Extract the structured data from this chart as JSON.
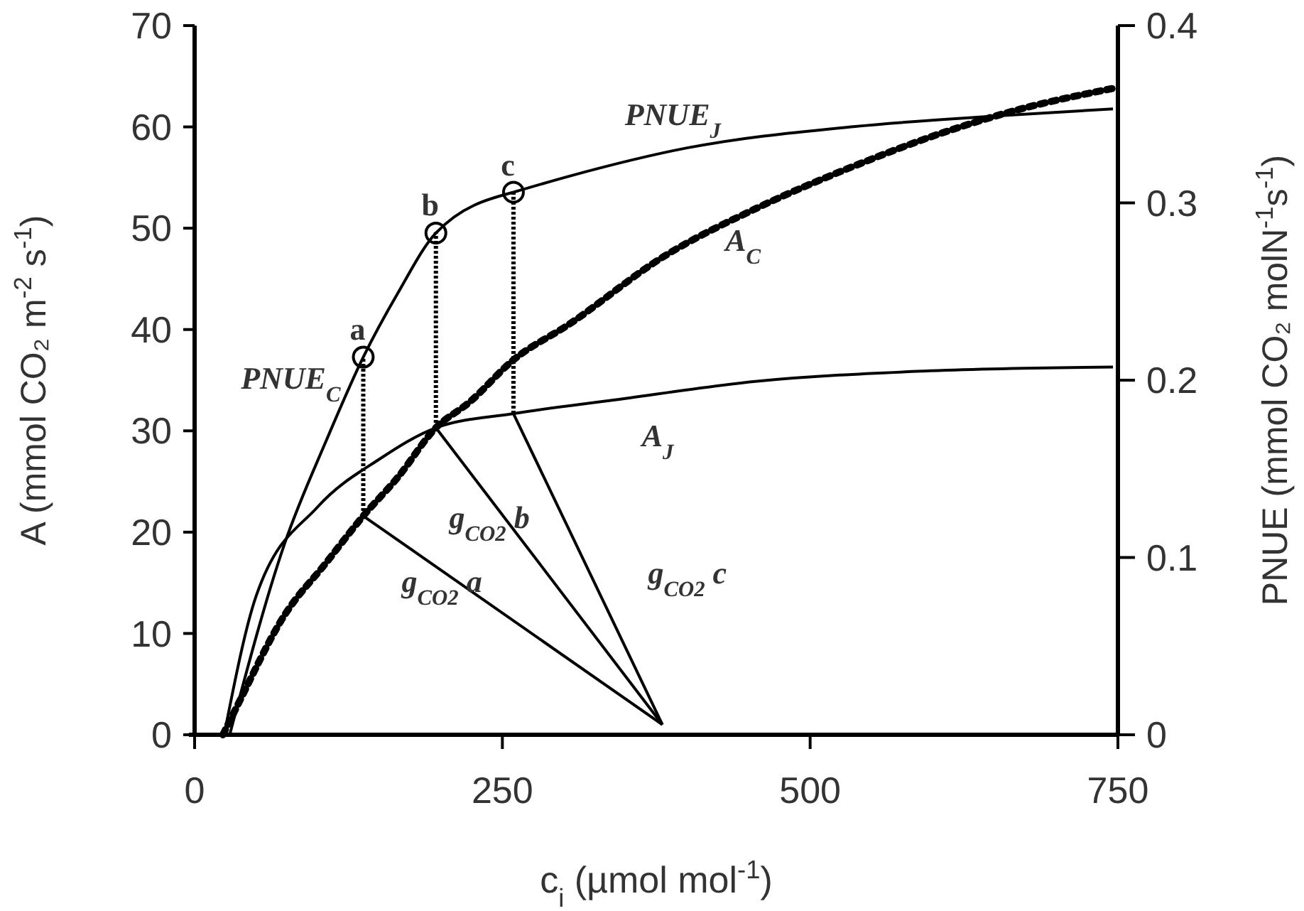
{
  "chart_data": {
    "type": "line",
    "xlabel": "c$_{i}$ (µmol mol$^{-1}$)",
    "ylabel": "A (mmol CO₂ m$^{-2}$ s$^{-1}$)",
    "y2label": "PNUE (mmol CO₂ molN$^{-1}$s$^{-1}$)",
    "xlim": [
      0,
      750
    ],
    "xticks": [
      0,
      250,
      500,
      750
    ],
    "ylim": [
      0,
      70
    ],
    "yticks": [
      0,
      10,
      20,
      30,
      40,
      50,
      60,
      70
    ],
    "y2lim": [
      0,
      0.4
    ],
    "y2ticks": [
      0,
      0.1,
      0.2,
      0.3,
      0.4
    ],
    "grid": false,
    "series": [
      {
        "name": "PNUE$_{C}$",
        "axis": "y2",
        "color": "#000000",
        "line_style": "solid",
        "x": [
          28.5,
          72.7,
          107,
          137,
          165,
          196,
          259
        ],
        "values": [
          0,
          0.107,
          0.166,
          0.213,
          0.249,
          0.283,
          0.306
        ]
      },
      {
        "name": "PNUE$_{J}$",
        "axis": "y2",
        "color": "#000000",
        "line_style": "solid",
        "x": [
          259,
          304,
          400,
          535,
          650,
          746
        ],
        "values": [
          0.306,
          0.315,
          0.331,
          0.343,
          0.349,
          0.353
        ]
      },
      {
        "name": "A$_{C}$",
        "color": "#000000",
        "line_style": "dotted",
        "x": [
          23,
          34,
          73,
          107,
          137,
          165,
          196,
          223,
          259,
          304,
          381,
          457,
          535,
          612,
          669,
          746
        ],
        "values": [
          0,
          2.7,
          11.8,
          17,
          21.6,
          25.4,
          30.3,
          32.8,
          37,
          40.5,
          47.2,
          52,
          56.1,
          59.6,
          61.7,
          63.8
        ]
      },
      {
        "name": "A$_{J}$",
        "color": "#000000",
        "line_style": "solid",
        "x": [
          24,
          50,
          100,
          150,
          196,
          259,
          338,
          457,
          592,
          746
        ],
        "values": [
          0,
          13.7,
          22.5,
          27.2,
          30.3,
          31.7,
          33,
          34.9,
          35.9,
          36.3
        ]
      },
      {
        "name": "g$_{CO2}$ a",
        "color": "#000000",
        "line_style": "solid",
        "x": [
          137,
          380
        ],
        "values": [
          21.6,
          1
        ]
      },
      {
        "name": "g$_{CO2}$ b",
        "color": "#000000",
        "line_style": "solid",
        "x": [
          196,
          380
        ],
        "values": [
          30.3,
          1
        ]
      },
      {
        "name": "g$_{CO2}$ c",
        "color": "#000000",
        "line_style": "solid",
        "x": [
          259,
          380
        ],
        "values": [
          31.7,
          1
        ]
      },
      {
        "color": "#000000",
        "line_style": "dotted",
        "x": [
          137,
          137
        ],
        "values": [
          21.6,
          37.3
        ]
      },
      {
        "color": "#000000",
        "line_style": "dotted",
        "x": [
          196,
          196
        ],
        "values": [
          30.3,
          49.6
        ]
      },
      {
        "color": "#000000",
        "line_style": "dotted",
        "x": [
          259,
          259
        ],
        "values": [
          31.7,
          53.5
        ]
      },
      {
        "type": "scatter",
        "axis": "y2",
        "marker": "circle",
        "color": "#000000",
        "x": [
          137,
          196,
          259
        ],
        "values": [
          0.213,
          0.283,
          0.306
        ]
      }
    ],
    "annotations": [
      {
        "text": "a",
        "x": 137,
        "y": 37.3
      },
      {
        "text": "b",
        "x": 196,
        "y": 49.6
      },
      {
        "text": "c",
        "x": 259,
        "y": 53.5
      }
    ]
  }
}
